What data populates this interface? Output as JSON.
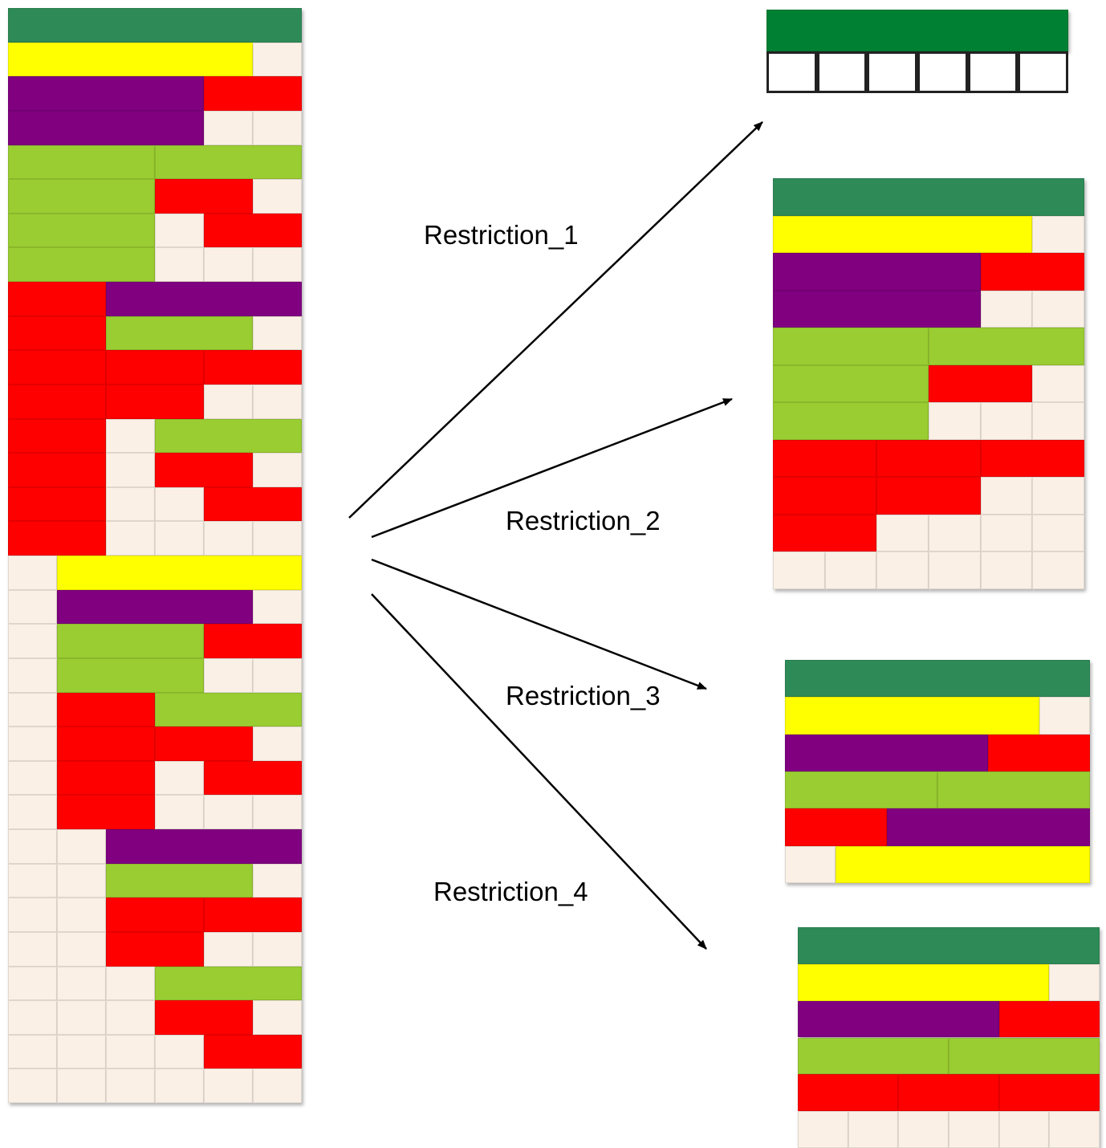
{
  "colors": {
    "dark-green": "#2e8b57",
    "yellow": "#ffff00",
    "purple": "#800080",
    "lime": "#9acd32",
    "red": "#ff0000",
    "cream": "#faf0e6",
    "top-green": "#008033"
  },
  "labels": {
    "r1": "Restriction_1",
    "r2": "Restriction_2",
    "r3": "Restriction_3",
    "r4": "Restriction_4"
  },
  "grids": {
    "main": [
      [
        [
          "dark-green",
          6
        ]
      ],
      [
        [
          "yellow",
          5
        ],
        [
          "cream",
          1
        ]
      ],
      [
        [
          "purple",
          4
        ],
        [
          "red",
          2
        ]
      ],
      [
        [
          "purple",
          4
        ],
        [
          "cream",
          1
        ],
        [
          "cream",
          1
        ]
      ],
      [
        [
          "lime",
          3
        ],
        [
          "lime",
          3
        ]
      ],
      [
        [
          "lime",
          3
        ],
        [
          "red",
          2
        ],
        [
          "cream",
          1
        ]
      ],
      [
        [
          "lime",
          3
        ],
        [
          "cream",
          1
        ],
        [
          "red",
          2
        ]
      ],
      [
        [
          "lime",
          3
        ],
        [
          "cream",
          1
        ],
        [
          "cream",
          1
        ],
        [
          "cream",
          1
        ]
      ],
      [
        [
          "red",
          2
        ],
        [
          "purple",
          4
        ]
      ],
      [
        [
          "red",
          2
        ],
        [
          "lime",
          3
        ],
        [
          "cream",
          1
        ]
      ],
      [
        [
          "red",
          2
        ],
        [
          "red",
          2
        ],
        [
          "red",
          2
        ]
      ],
      [
        [
          "red",
          2
        ],
        [
          "red",
          2
        ],
        [
          "cream",
          1
        ],
        [
          "cream",
          1
        ]
      ],
      [
        [
          "red",
          2
        ],
        [
          "cream",
          1
        ],
        [
          "lime",
          3
        ]
      ],
      [
        [
          "red",
          2
        ],
        [
          "cream",
          1
        ],
        [
          "red",
          2
        ],
        [
          "cream",
          1
        ]
      ],
      [
        [
          "red",
          2
        ],
        [
          "cream",
          1
        ],
        [
          "cream",
          1
        ],
        [
          "red",
          2
        ]
      ],
      [
        [
          "red",
          2
        ],
        [
          "cream",
          1
        ],
        [
          "cream",
          1
        ],
        [
          "cream",
          1
        ],
        [
          "cream",
          1
        ]
      ],
      [
        [
          "cream",
          1
        ],
        [
          "yellow",
          5
        ]
      ],
      [
        [
          "cream",
          1
        ],
        [
          "purple",
          4
        ],
        [
          "cream",
          1
        ]
      ],
      [
        [
          "cream",
          1
        ],
        [
          "lime",
          3
        ],
        [
          "red",
          2
        ]
      ],
      [
        [
          "cream",
          1
        ],
        [
          "lime",
          3
        ],
        [
          "cream",
          1
        ],
        [
          "cream",
          1
        ]
      ],
      [
        [
          "cream",
          1
        ],
        [
          "red",
          2
        ],
        [
          "lime",
          3
        ]
      ],
      [
        [
          "cream",
          1
        ],
        [
          "red",
          2
        ],
        [
          "red",
          2
        ],
        [
          "cream",
          1
        ]
      ],
      [
        [
          "cream",
          1
        ],
        [
          "red",
          2
        ],
        [
          "cream",
          1
        ],
        [
          "red",
          2
        ]
      ],
      [
        [
          "cream",
          1
        ],
        [
          "red",
          2
        ],
        [
          "cream",
          1
        ],
        [
          "cream",
          1
        ],
        [
          "cream",
          1
        ]
      ],
      [
        [
          "cream",
          1
        ],
        [
          "cream",
          1
        ],
        [
          "purple",
          4
        ]
      ],
      [
        [
          "cream",
          1
        ],
        [
          "cream",
          1
        ],
        [
          "lime",
          3
        ],
        [
          "cream",
          1
        ]
      ],
      [
        [
          "cream",
          1
        ],
        [
          "cream",
          1
        ],
        [
          "red",
          2
        ],
        [
          "red",
          2
        ]
      ],
      [
        [
          "cream",
          1
        ],
        [
          "cream",
          1
        ],
        [
          "red",
          2
        ],
        [
          "cream",
          1
        ],
        [
          "cream",
          1
        ]
      ],
      [
        [
          "cream",
          1
        ],
        [
          "cream",
          1
        ],
        [
          "cream",
          1
        ],
        [
          "lime",
          3
        ]
      ],
      [
        [
          "cream",
          1
        ],
        [
          "cream",
          1
        ],
        [
          "cream",
          1
        ],
        [
          "red",
          2
        ],
        [
          "cream",
          1
        ]
      ],
      [
        [
          "cream",
          1
        ],
        [
          "cream",
          1
        ],
        [
          "cream",
          1
        ],
        [
          "cream",
          1
        ],
        [
          "red",
          2
        ]
      ],
      [
        [
          "cream",
          1
        ],
        [
          "cream",
          1
        ],
        [
          "cream",
          1
        ],
        [
          "cream",
          1
        ],
        [
          "cream",
          1
        ],
        [
          "cream",
          1
        ]
      ]
    ],
    "r1": [
      [
        [
          "top-green",
          6
        ]
      ],
      [
        [
          "white",
          1
        ],
        [
          "white",
          1
        ],
        [
          "white",
          1
        ],
        [
          "white",
          1
        ],
        [
          "white",
          1
        ],
        [
          "white",
          1
        ]
      ]
    ],
    "r2": [
      [
        [
          "dark-green",
          6
        ]
      ],
      [
        [
          "yellow",
          5
        ],
        [
          "cream",
          1
        ]
      ],
      [
        [
          "purple",
          4
        ],
        [
          "red",
          2
        ]
      ],
      [
        [
          "purple",
          4
        ],
        [
          "cream",
          1
        ],
        [
          "cream",
          1
        ]
      ],
      [
        [
          "lime",
          3
        ],
        [
          "lime",
          3
        ]
      ],
      [
        [
          "lime",
          3
        ],
        [
          "red",
          2
        ],
        [
          "cream",
          1
        ]
      ],
      [
        [
          "lime",
          3
        ],
        [
          "cream",
          1
        ],
        [
          "cream",
          1
        ],
        [
          "cream",
          1
        ]
      ],
      [
        [
          "red",
          2
        ],
        [
          "red",
          2
        ],
        [
          "red",
          2
        ]
      ],
      [
        [
          "red",
          2
        ],
        [
          "red",
          2
        ],
        [
          "cream",
          1
        ],
        [
          "cream",
          1
        ]
      ],
      [
        [
          "red",
          2
        ],
        [
          "cream",
          1
        ],
        [
          "cream",
          1
        ],
        [
          "cream",
          1
        ],
        [
          "cream",
          1
        ]
      ],
      [
        [
          "cream",
          1
        ],
        [
          "cream",
          1
        ],
        [
          "cream",
          1
        ],
        [
          "cream",
          1
        ],
        [
          "cream",
          1
        ],
        [
          "cream",
          1
        ]
      ]
    ],
    "r3": [
      [
        [
          "dark-green",
          6
        ]
      ],
      [
        [
          "yellow",
          5
        ],
        [
          "cream",
          1
        ]
      ],
      [
        [
          "purple",
          4
        ],
        [
          "red",
          2
        ]
      ],
      [
        [
          "lime",
          3
        ],
        [
          "lime",
          3
        ]
      ],
      [
        [
          "red",
          2
        ],
        [
          "purple",
          4
        ]
      ],
      [
        [
          "cream",
          1
        ],
        [
          "yellow",
          5
        ]
      ]
    ],
    "r4": [
      [
        [
          "dark-green",
          6
        ]
      ],
      [
        [
          "yellow",
          5
        ],
        [
          "cream",
          1
        ]
      ],
      [
        [
          "purple",
          4
        ],
        [
          "red",
          2
        ]
      ],
      [
        [
          "lime",
          3
        ],
        [
          "lime",
          3
        ]
      ],
      [
        [
          "red",
          2
        ],
        [
          "red",
          2
        ],
        [
          "red",
          2
        ]
      ],
      [
        [
          "cream",
          1
        ],
        [
          "cream",
          1
        ],
        [
          "cream",
          1
        ],
        [
          "cream",
          1
        ],
        [
          "cream",
          1
        ],
        [
          "cream",
          1
        ]
      ]
    ]
  }
}
